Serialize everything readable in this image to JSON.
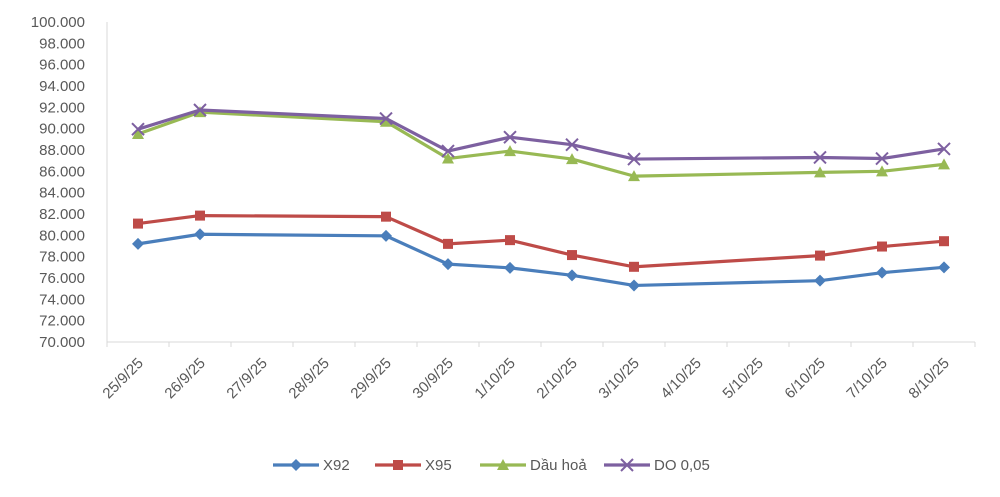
{
  "chart_data": {
    "type": "line",
    "title": "",
    "xlabel": "",
    "ylabel": "",
    "categories": [
      "25/9/25",
      "26/9/25",
      "27/9/25",
      "28/9/25",
      "29/9/25",
      "30/9/25",
      "1/10/25",
      "2/10/25",
      "3/10/25",
      "4/10/25",
      "5/10/25",
      "6/10/25",
      "7/10/25",
      "8/10/25"
    ],
    "ylim": [
      70000,
      100000
    ],
    "y_ticks": [
      70000,
      72000,
      74000,
      76000,
      78000,
      80000,
      82000,
      84000,
      86000,
      88000,
      90000,
      92000,
      94000,
      96000,
      98000,
      100000
    ],
    "y_tick_labels": [
      "70.000",
      "72.000",
      "74.000",
      "76.000",
      "78.000",
      "80.000",
      "82.000",
      "84.000",
      "86.000",
      "88.000",
      "90.000",
      "92.000",
      "94.000",
      "96.000",
      "98.000",
      "100.000"
    ],
    "grid": false,
    "legend_position": "bottom",
    "series": [
      {
        "name": "X92",
        "color": "#4a7ebb",
        "marker": "diamond",
        "values": [
          79200,
          80100,
          null,
          null,
          79950,
          77300,
          76950,
          76250,
          75300,
          null,
          null,
          75750,
          76500,
          77000
        ]
      },
      {
        "name": "X95",
        "color": "#be4b48",
        "marker": "square",
        "values": [
          81100,
          81850,
          null,
          null,
          81750,
          79200,
          79550,
          78150,
          77050,
          null,
          null,
          78100,
          78950,
          79450
        ]
      },
      {
        "name": "Dầu hoả",
        "color": "#98b954",
        "marker": "triangle",
        "values": [
          89500,
          91550,
          null,
          null,
          90650,
          87200,
          87900,
          87150,
          85550,
          null,
          null,
          85900,
          86000,
          86650
        ]
      },
      {
        "name": "DO 0,05",
        "color": "#7d60a0",
        "marker": "x",
        "values": [
          89950,
          91750,
          null,
          null,
          90950,
          87900,
          89200,
          88500,
          87150,
          null,
          null,
          87300,
          87200,
          88100
        ]
      }
    ]
  }
}
